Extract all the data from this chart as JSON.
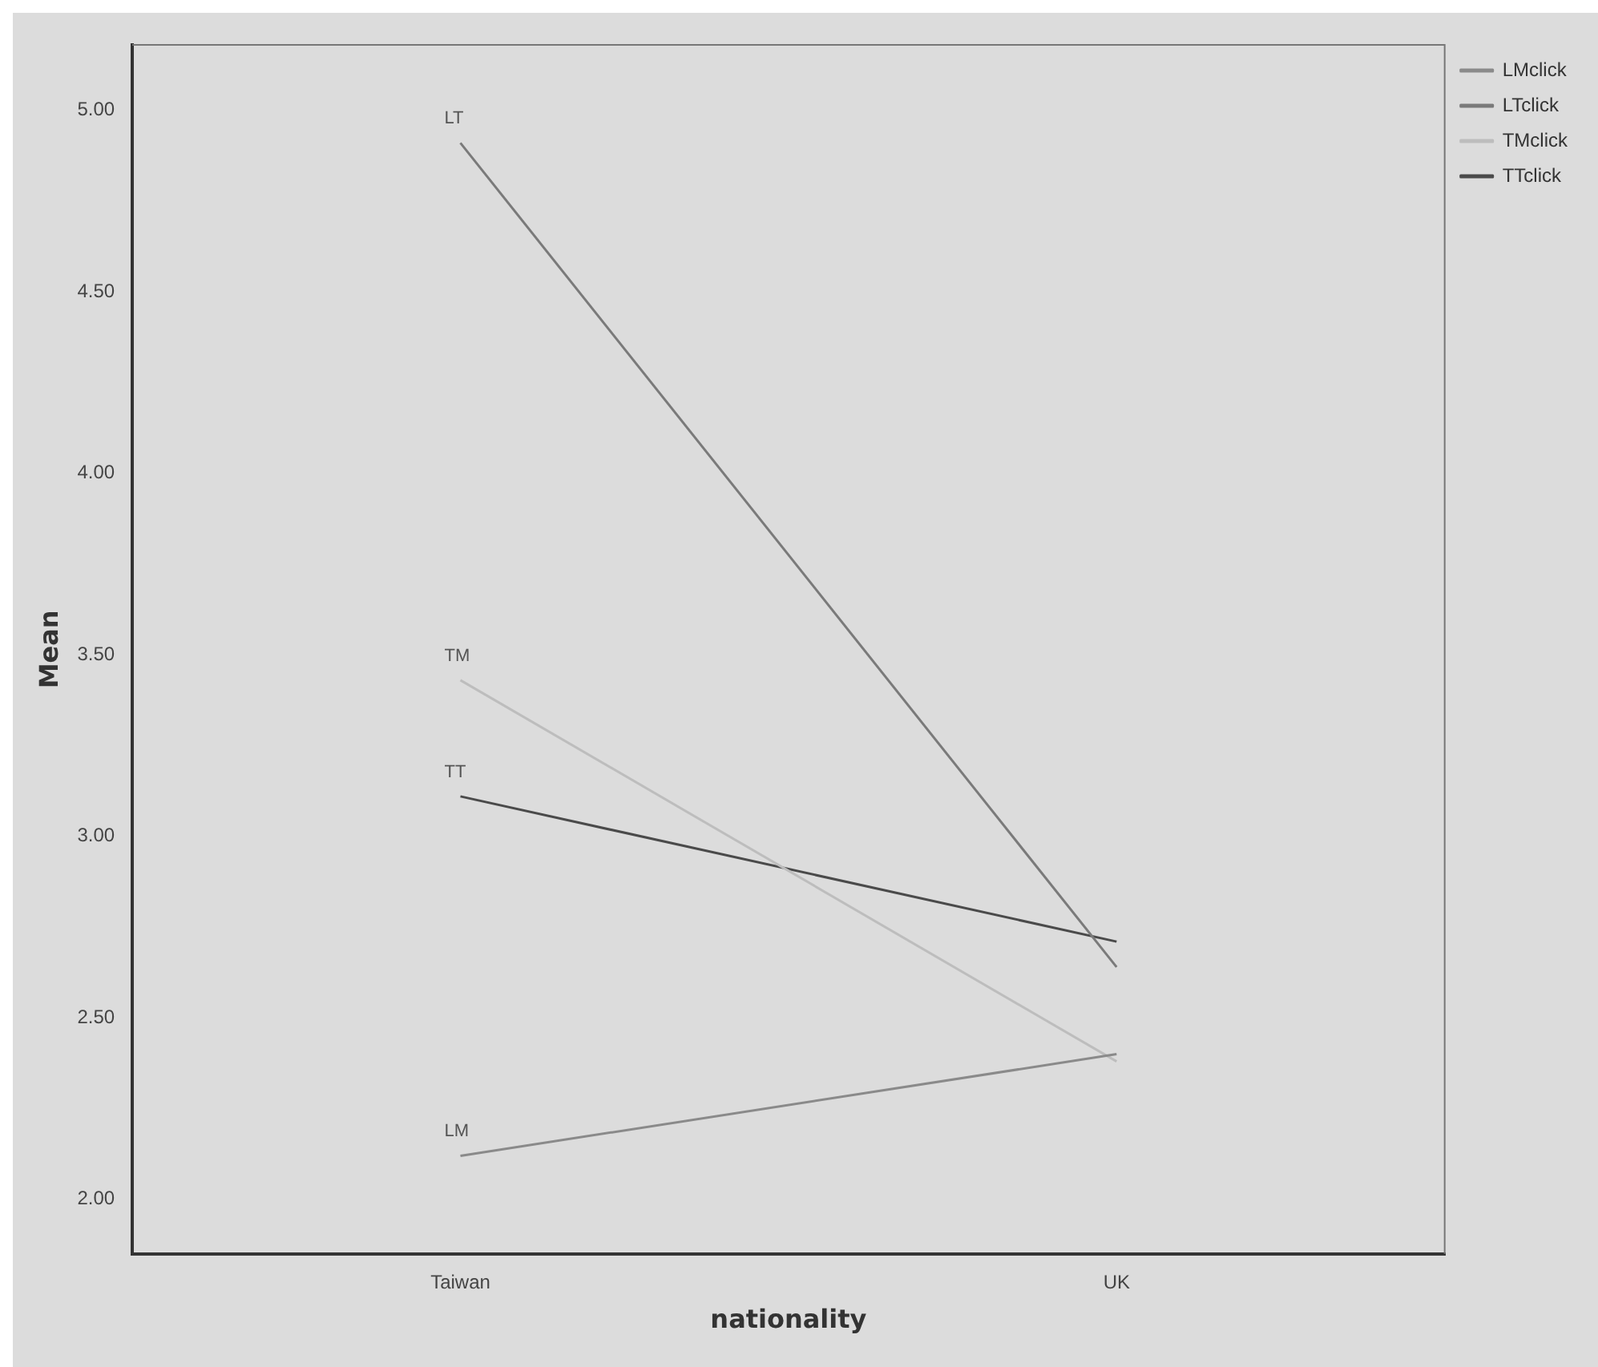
{
  "chart_data": {
    "type": "line",
    "xlabel": "nationality",
    "ylabel": "Mean",
    "categories": [
      "Taiwan",
      "UK"
    ],
    "series": [
      {
        "name": "LMclick",
        "color": "#8a8a8a",
        "values": [
          2.12,
          2.4
        ]
      },
      {
        "name": "LTclick",
        "color": "#7a7a7a",
        "values": [
          4.91,
          2.64
        ]
      },
      {
        "name": "TMclick",
        "color": "#bdbdbd",
        "values": [
          3.43,
          2.38
        ]
      },
      {
        "name": "TTclick",
        "color": "#4a4a4a",
        "values": [
          3.11,
          2.71
        ]
      }
    ],
    "ylim": [
      1.85,
      5.18
    ],
    "yticks": [
      {
        "value": 2,
        "label": "2.00"
      },
      {
        "value": 2.5,
        "label": "2.50"
      },
      {
        "value": 3,
        "label": "3.00"
      },
      {
        "value": 3.5,
        "label": "3.50"
      },
      {
        "value": 4,
        "label": "4.00"
      },
      {
        "value": 4.5,
        "label": "4.50"
      },
      {
        "value": 5,
        "label": "5.00"
      }
    ],
    "annotations": [
      {
        "text": "LT",
        "x": "Taiwan",
        "y": 4.91
      },
      {
        "text": "TM",
        "x": "Taiwan",
        "y": 3.43
      },
      {
        "text": "TT",
        "x": "Taiwan",
        "y": 3.11
      },
      {
        "text": "LM",
        "x": "Taiwan",
        "y": 2.12
      }
    ],
    "grid": false,
    "legend": "top right",
    "marker": "none",
    "line_style": "solid"
  }
}
